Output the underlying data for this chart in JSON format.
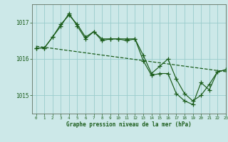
{
  "title": "Graphe pression niveau de la mer (hPa)",
  "bg_color": "#cce8e8",
  "grid_color": "#99cccc",
  "line_color": "#1a5c1a",
  "xlim": [
    -0.5,
    23
  ],
  "ylim": [
    1014.5,
    1017.5
  ],
  "yticks": [
    1015,
    1016,
    1017
  ],
  "xticks": [
    0,
    1,
    2,
    3,
    4,
    5,
    6,
    7,
    8,
    9,
    10,
    11,
    12,
    13,
    14,
    15,
    16,
    17,
    18,
    19,
    20,
    21,
    22,
    23
  ],
  "trend_x": [
    0,
    23
  ],
  "trend_y": [
    1016.35,
    1015.65
  ],
  "line1_x": [
    0,
    1,
    2,
    3,
    4,
    5,
    6,
    7,
    8,
    9,
    10,
    11,
    12,
    13,
    14,
    15,
    16,
    17,
    18,
    19,
    20,
    21,
    22,
    23
  ],
  "line1_y": [
    1016.3,
    1016.3,
    1016.6,
    1016.95,
    1017.2,
    1016.95,
    1016.6,
    1016.75,
    1016.55,
    1016.55,
    1016.55,
    1016.55,
    1016.55,
    1016.1,
    1015.6,
    1015.8,
    1016.0,
    1015.45,
    1015.05,
    1014.85,
    1015.0,
    1015.3,
    1015.65,
    1015.7
  ],
  "line2_x": [
    0,
    1,
    2,
    3,
    4,
    5,
    6,
    7,
    8,
    9,
    10,
    11,
    12,
    13,
    14,
    15,
    16,
    17,
    18,
    19,
    20,
    21,
    22,
    23
  ],
  "line2_y": [
    1016.3,
    1016.3,
    1016.6,
    1016.9,
    1017.25,
    1016.9,
    1016.55,
    1016.75,
    1016.5,
    1016.55,
    1016.55,
    1016.5,
    1016.55,
    1015.95,
    1015.55,
    1015.6,
    1015.6,
    1015.05,
    1014.85,
    1014.75,
    1015.35,
    1015.15,
    1015.65,
    1015.7
  ]
}
